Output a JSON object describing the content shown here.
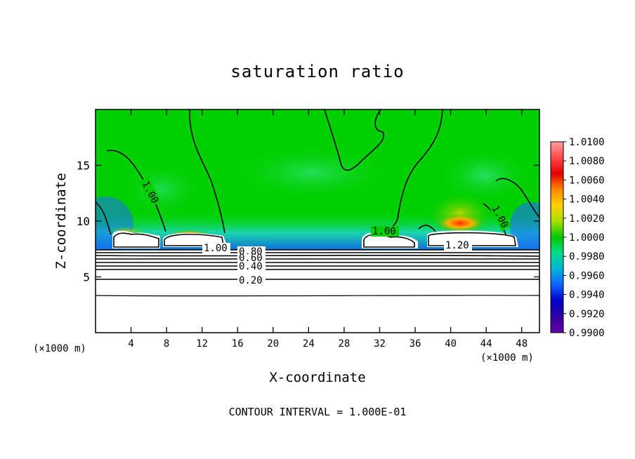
{
  "chart_data": {
    "type": "heatmap",
    "title": "saturation ratio",
    "xlabel": "X-coordinate",
    "ylabel": "Z-coordinate",
    "x_unit_label": "(×1000 m)",
    "x_ticks": [
      4,
      8,
      12,
      16,
      20,
      24,
      28,
      32,
      36,
      40,
      44,
      48
    ],
    "y_ticks": [
      5,
      10,
      15
    ],
    "xlim": [
      0,
      50
    ],
    "ylim": [
      0,
      20
    ],
    "footer": "CONTOUR INTERVAL = 1.000E-01",
    "colorbar": {
      "labels": [
        "1.0100",
        "1.0080",
        "1.0060",
        "1.0040",
        "1.0020",
        "1.0000",
        "0.9980",
        "0.9960",
        "0.9940",
        "0.9920",
        "0.9900"
      ],
      "range": [
        0.99,
        1.01
      ],
      "colors": [
        "#ff9f9f",
        "#ff4a4a",
        "#e00000",
        "#ff8800",
        "#ffd000",
        "#a8e000",
        "#00c800",
        "#00dc8c",
        "#00b4d8",
        "#1060ff",
        "#0000c8",
        "#3000a0",
        "#6a00a8"
      ]
    },
    "contour_labels": [
      "1.00",
      "1.00",
      "1.00",
      "1.00",
      "1.20",
      "0.80",
      "0.60",
      "0.40",
      "0.20"
    ],
    "contour_levels": [
      0.2,
      0.3,
      0.4,
      0.5,
      0.6,
      0.7,
      0.8,
      0.9,
      1.0,
      1.2
    ]
  }
}
